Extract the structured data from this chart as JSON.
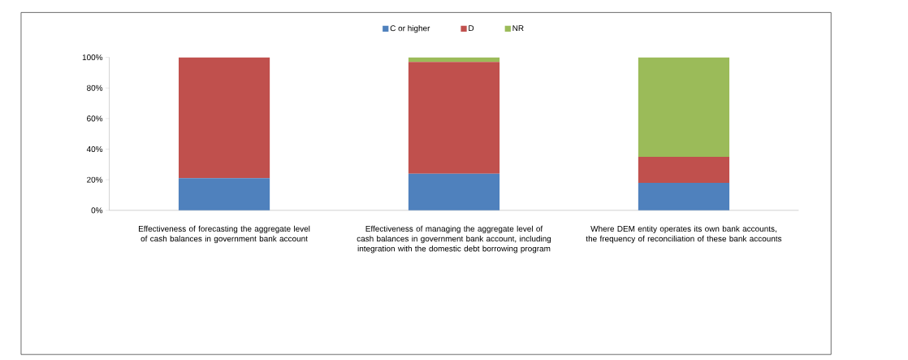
{
  "chart_data": {
    "type": "bar",
    "stacked": true,
    "legend": "top",
    "categories": [
      "Effectiveness  of forecasting the aggregate level of cash balances in government bank account",
      "Effectiveness  of managing the aggregate level of cash balances in government bank account, including integration with the domestic debt borrowing program",
      "Where DEM entity operates its own bank accounts, the frequency of reconciliation of these bank accounts"
    ],
    "series": [
      {
        "name": "C or higher",
        "color": "#4f81bd",
        "values": [
          21,
          24,
          18
        ]
      },
      {
        "name": "D",
        "color": "#c0504d",
        "values": [
          79,
          73,
          17
        ]
      },
      {
        "name": "NR",
        "color": "#9bbb59",
        "values": [
          0,
          3,
          65
        ]
      }
    ],
    "ylim": [
      0,
      100
    ],
    "yticks": [
      {
        "value": 0,
        "label": "0%"
      },
      {
        "value": 20,
        "label": "20%"
      },
      {
        "value": 40,
        "label": "40%"
      },
      {
        "value": 60,
        "label": "60%"
      },
      {
        "value": 80,
        "label": "80%"
      },
      {
        "value": 100,
        "label": "100%"
      }
    ]
  }
}
